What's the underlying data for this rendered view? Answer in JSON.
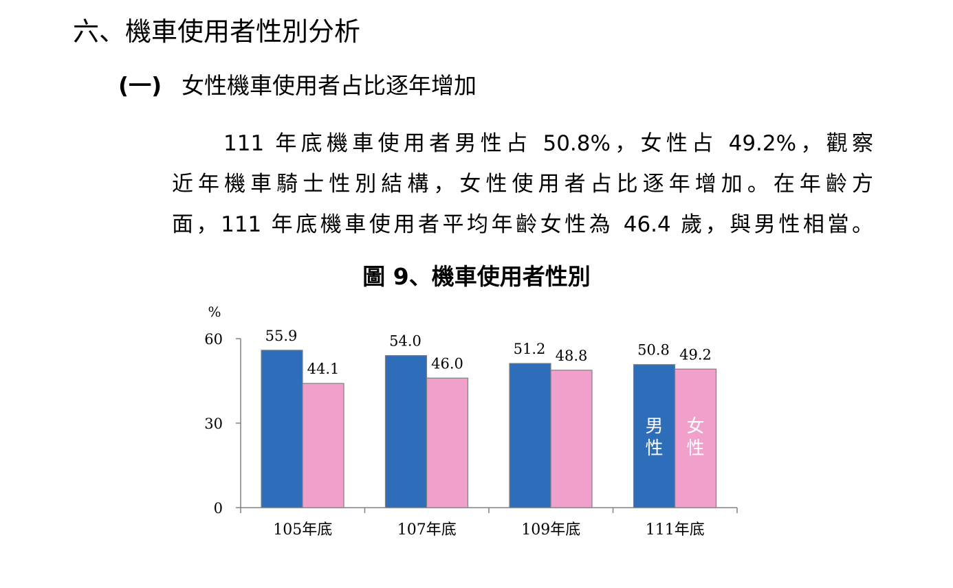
{
  "section": {
    "heading": "六、機車使用者性別分析"
  },
  "subsection": {
    "number": "(一)",
    "title": "女性機車使用者占比逐年增加"
  },
  "paragraph": {
    "lines": [
      "111 年底機車使用者男性占 50.8%，女性占 49.2%，觀察",
      "近年機車騎士性別結構，女性使用者占比逐年增加。在年齡方",
      "面，111 年底機車使用者平均年齡女性為 46.4 歲，與男性相當。"
    ]
  },
  "figure": {
    "title": "圖 9、機車使用者性別"
  },
  "chart_data": {
    "type": "bar",
    "title": "圖 9、機車使用者性別",
    "ylabel": "%",
    "xlabel": "",
    "categories": [
      "105年底",
      "107年底",
      "109年底",
      "111年底"
    ],
    "series": [
      {
        "name": "男性",
        "values": [
          55.9,
          54.0,
          51.2,
          50.8
        ],
        "color": "#2E6DB9",
        "value_labels": [
          "55.9",
          "54.0",
          "51.2",
          "50.8"
        ]
      },
      {
        "name": "女性",
        "values": [
          44.1,
          46.0,
          48.8,
          49.2
        ],
        "color": "#F0A0CB",
        "value_labels": [
          "44.1",
          "46.0",
          "48.8",
          "49.2"
        ]
      }
    ],
    "ylim": [
      0,
      60
    ],
    "yticks": [
      "0",
      "30",
      "60"
    ],
    "grid": false,
    "legend": "inside the 111年底 bars"
  }
}
